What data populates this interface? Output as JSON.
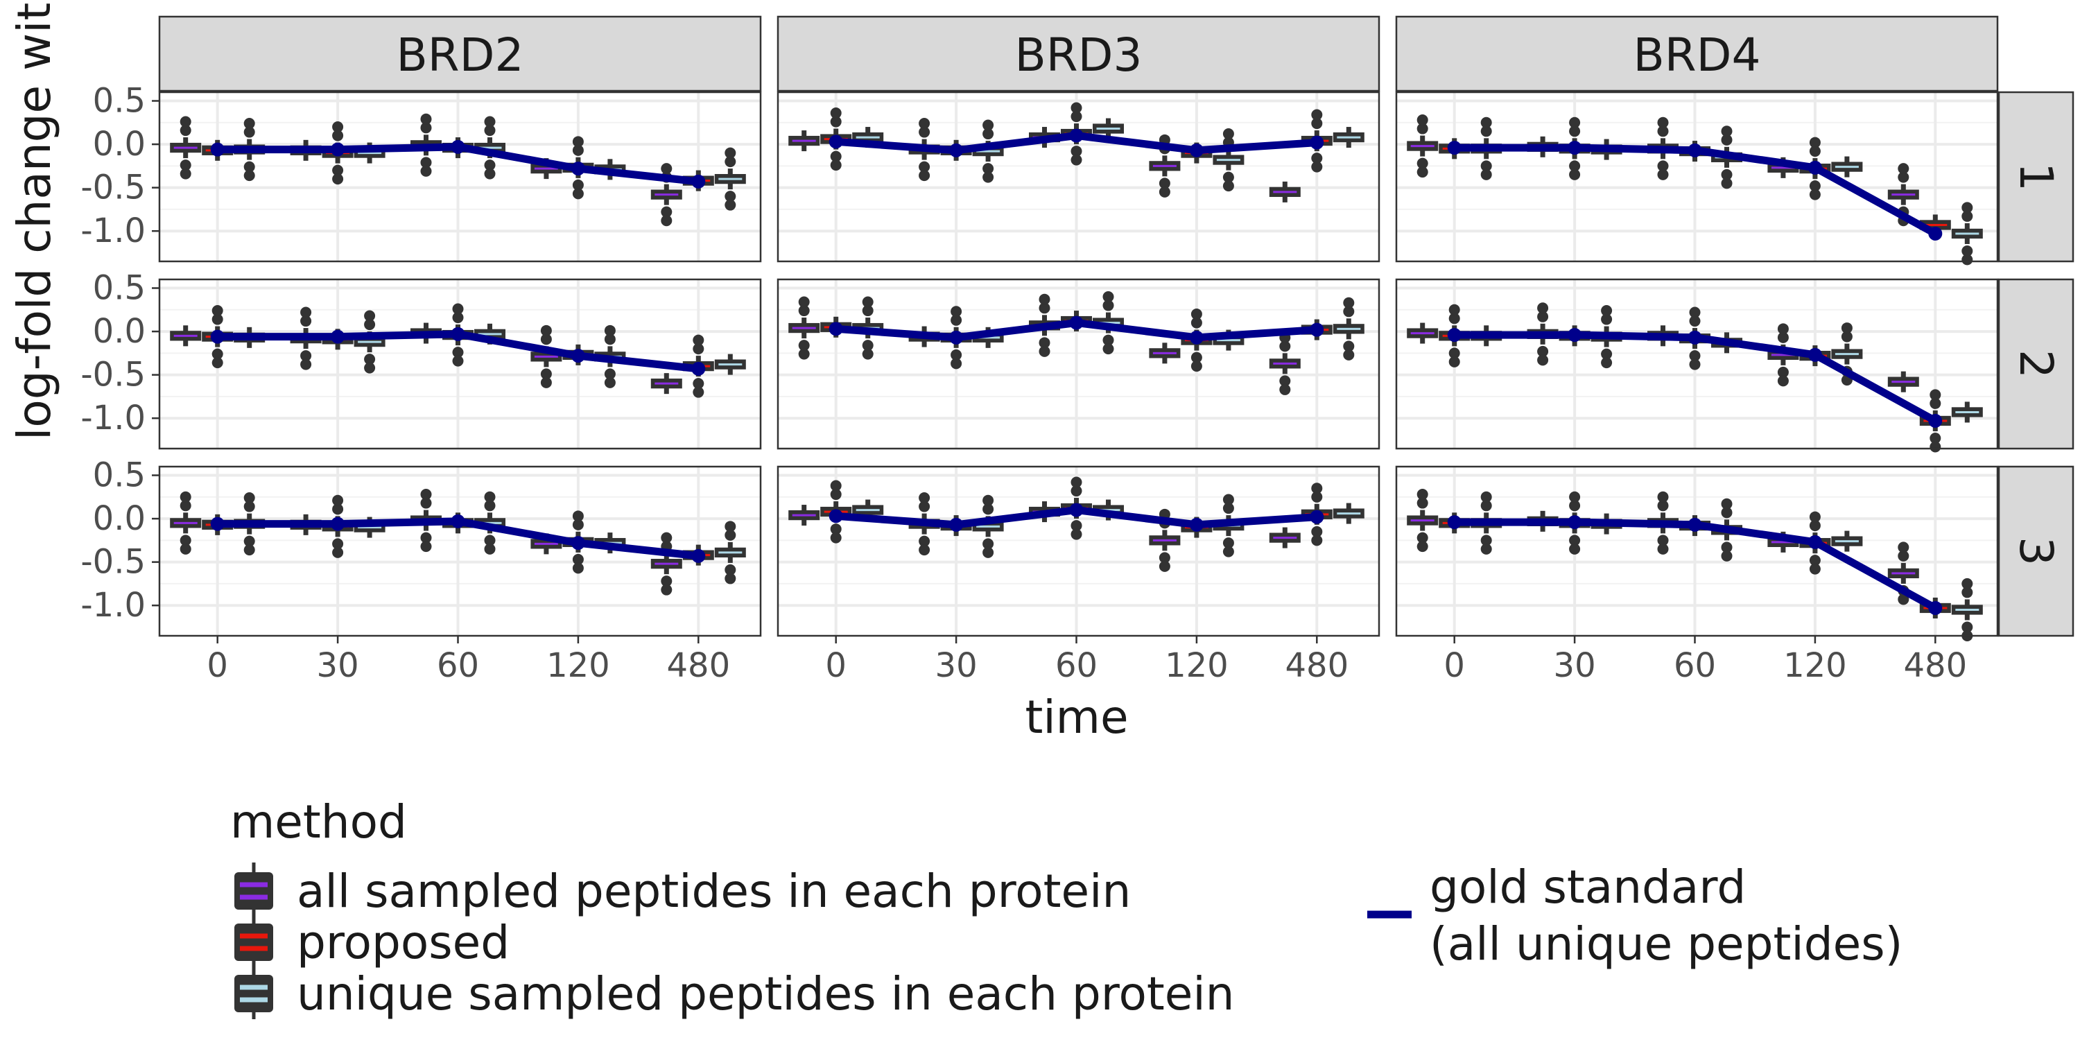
{
  "chart_data": {
    "type": "line",
    "ylabel": "log-fold change with respect to co",
    "xlabel": "time",
    "x_categories": [
      "0",
      "30",
      "60",
      "120",
      "480"
    ],
    "y_ticks": [
      "0.5",
      "0.0",
      "-0.5",
      "-1.0"
    ],
    "y_tick_values": [
      0.5,
      0.0,
      -0.5,
      -1.0
    ],
    "ylim": [
      -1.35,
      0.6
    ],
    "grid": true,
    "legend_position": "bottom",
    "col_facets": [
      "BRD2",
      "BRD3",
      "BRD4"
    ],
    "row_facets": [
      "1",
      "2",
      "3"
    ],
    "legend": {
      "title": "method",
      "boxplot_entries": [
        {
          "label": "all sampled peptides in each protein",
          "color": "#8a2be2"
        },
        {
          "label": "proposed",
          "color": "#e8170c"
        },
        {
          "label": "unique sampled peptides in each protein",
          "color": "#add8e6"
        }
      ],
      "line_entry": {
        "label_line1": "gold standard",
        "label_line2": "(all unique peptides)",
        "color": "#00008b"
      }
    },
    "gold_standard": {
      "BRD2": [
        -0.06,
        -0.06,
        -0.03,
        -0.28,
        -0.43
      ],
      "BRD3": [
        0.03,
        -0.07,
        0.1,
        -0.07,
        0.02
      ],
      "BRD4": [
        -0.04,
        -0.04,
        -0.07,
        -0.27,
        -1.03
      ]
    },
    "box_series": {
      "BRD2": [
        [
          [
            -0.04,
            -0.07,
            -0.06
          ],
          [
            -0.07,
            -0.1,
            -0.1
          ],
          [
            -0.01,
            -0.04,
            -0.04
          ],
          [
            -0.28,
            -0.27,
            -0.29
          ],
          [
            -0.58,
            -0.42,
            -0.4
          ]
        ],
        [
          [
            -0.05,
            -0.06,
            -0.07
          ],
          [
            -0.08,
            -0.09,
            -0.12
          ],
          [
            -0.02,
            -0.04,
            -0.03
          ],
          [
            -0.29,
            -0.27,
            -0.29
          ],
          [
            -0.6,
            -0.4,
            -0.38
          ]
        ],
        [
          [
            -0.05,
            -0.07,
            -0.06
          ],
          [
            -0.07,
            -0.09,
            -0.1
          ],
          [
            -0.02,
            -0.05,
            -0.05
          ],
          [
            -0.29,
            -0.27,
            -0.28
          ],
          [
            -0.52,
            -0.42,
            -0.39
          ]
        ]
      ],
      "BRD3": [
        [
          [
            0.04,
            0.06,
            0.08
          ],
          [
            -0.06,
            -0.07,
            -0.08
          ],
          [
            0.08,
            0.12,
            0.18
          ],
          [
            -0.25,
            -0.1,
            -0.18
          ],
          [
            -0.55,
            0.04,
            0.08
          ]
        ],
        [
          [
            0.04,
            0.05,
            0.04
          ],
          [
            -0.06,
            -0.07,
            -0.07
          ],
          [
            0.07,
            0.12,
            0.1
          ],
          [
            -0.25,
            -0.1,
            -0.1
          ],
          [
            -0.37,
            0.02,
            0.03
          ]
        ],
        [
          [
            0.04,
            0.08,
            0.1
          ],
          [
            -0.06,
            -0.08,
            -0.09
          ],
          [
            0.08,
            0.12,
            0.1
          ],
          [
            -0.25,
            -0.1,
            -0.08
          ],
          [
            -0.22,
            0.05,
            0.06
          ]
        ]
      ],
      "BRD4": [
        [
          [
            -0.02,
            -0.05,
            -0.05
          ],
          [
            -0.03,
            -0.05,
            -0.06
          ],
          [
            -0.05,
            -0.08,
            -0.15
          ],
          [
            -0.27,
            -0.28,
            -0.26
          ],
          [
            -0.58,
            -0.93,
            -1.03
          ]
        ],
        [
          [
            -0.02,
            -0.05,
            -0.05
          ],
          [
            -0.03,
            -0.05,
            -0.06
          ],
          [
            -0.05,
            -0.08,
            -0.13
          ],
          [
            -0.27,
            -0.28,
            -0.26
          ],
          [
            -0.58,
            -1.03,
            -0.93
          ]
        ],
        [
          [
            -0.02,
            -0.05,
            -0.05
          ],
          [
            -0.03,
            -0.05,
            -0.06
          ],
          [
            -0.05,
            -0.08,
            -0.13
          ],
          [
            -0.27,
            -0.28,
            -0.26
          ],
          [
            -0.63,
            -1.03,
            -1.05
          ]
        ]
      ]
    }
  }
}
